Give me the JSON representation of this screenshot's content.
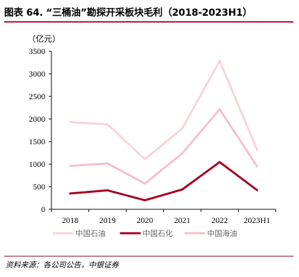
{
  "header": {
    "title": "图表 64. “三桶油”勘探开采板块毛利（2018-2023H1）"
  },
  "footer": {
    "source": "资料来源：各公司公告，中银证券"
  },
  "colors": {
    "accent": "#b8102f",
    "series": [
      "#f7d4d6",
      "#a5001f",
      "#f3c0ca"
    ]
  },
  "chart_data": {
    "type": "line",
    "unit_label": "（亿元）",
    "categories": [
      "2018",
      "2019",
      "2020",
      "2021",
      "2022",
      "2023H1"
    ],
    "yticks": [
      "0",
      "500",
      "1000",
      "1500",
      "2000",
      "2500",
      "3000",
      "3500"
    ],
    "ylim": [
      0,
      3500
    ],
    "legend_position": "bottom",
    "series": [
      {
        "name": "中国石油",
        "values": [
          1930,
          1880,
          1110,
          1790,
          3290,
          1320
        ]
      },
      {
        "name": "中国石化",
        "values": [
          350,
          420,
          200,
          440,
          1045,
          425
        ]
      },
      {
        "name": "中国海油",
        "values": [
          960,
          1015,
          570,
          1240,
          2215,
          950
        ]
      }
    ]
  }
}
